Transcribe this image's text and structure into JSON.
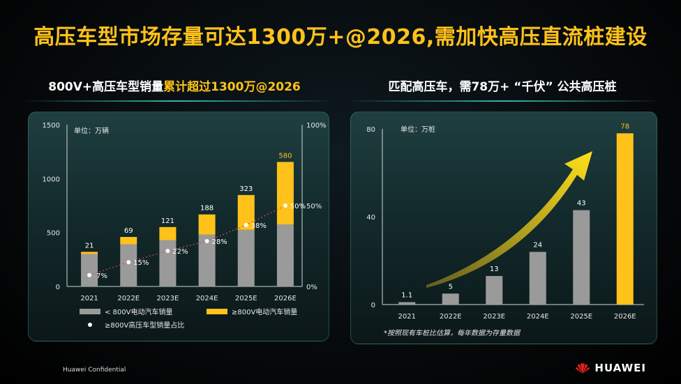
{
  "page": {
    "title": "高压车型市场存量可达1300万+@2026,需加快高压直流桩建设",
    "left_subtitle_a": "800V+高压车型销量",
    "left_subtitle_b": "累计超过1300万@2026",
    "right_subtitle": "匹配高压车，需78万+ “千伏” 公共高压桩",
    "footer_left": "Huawei Confidential",
    "brand": "HUAWEI"
  },
  "colors": {
    "accent": "#ffc21a",
    "gray_bar": "#9a9a9a",
    "teal": "#3cc8be"
  },
  "chart_data": [
    {
      "type": "bar",
      "stacked": true,
      "unit_label": "单位：万辆",
      "categories": [
        "2021",
        "2022E",
        "2023E",
        "2024E",
        "2025E",
        "2026E"
      ],
      "series": [
        {
          "name": "< 800V电动汽车销量",
          "values": [
            300,
            390,
            430,
            480,
            525,
            575
          ]
        },
        {
          "name": "≥800V电动汽车销量",
          "values": [
            21,
            69,
            121,
            188,
            323,
            580
          ]
        }
      ],
      "top_labels": [
        "21",
        "69",
        "121",
        "188",
        "323",
        "580"
      ],
      "share": {
        "name": "≥800V高压车型销量占比",
        "values": [
          7,
          15,
          22,
          28,
          38,
          50
        ],
        "labels": [
          "7%",
          "15%",
          "22%",
          "28%",
          "38%",
          "50%"
        ]
      },
      "ylim": [
        0,
        1500
      ],
      "yticks": [
        "0",
        "500",
        "1000",
        "1500"
      ],
      "y2lim": [
        0,
        100
      ],
      "y2ticks": [
        "0%",
        "50%",
        "100%"
      ]
    },
    {
      "type": "bar",
      "unit_label": "单位：万桩",
      "categories": [
        "2021",
        "2022E",
        "2023E",
        "2024E",
        "2025E",
        "2026E"
      ],
      "values": [
        1.1,
        5,
        13,
        24,
        43,
        78
      ],
      "labels": [
        "1.1",
        "5",
        "13",
        "24",
        "43",
        "78"
      ],
      "ylim": [
        0,
        80
      ],
      "yticks": [
        "0",
        "40",
        "80"
      ],
      "footnote": "*按照现有车桩比估算，每年数据为存量数据"
    }
  ]
}
